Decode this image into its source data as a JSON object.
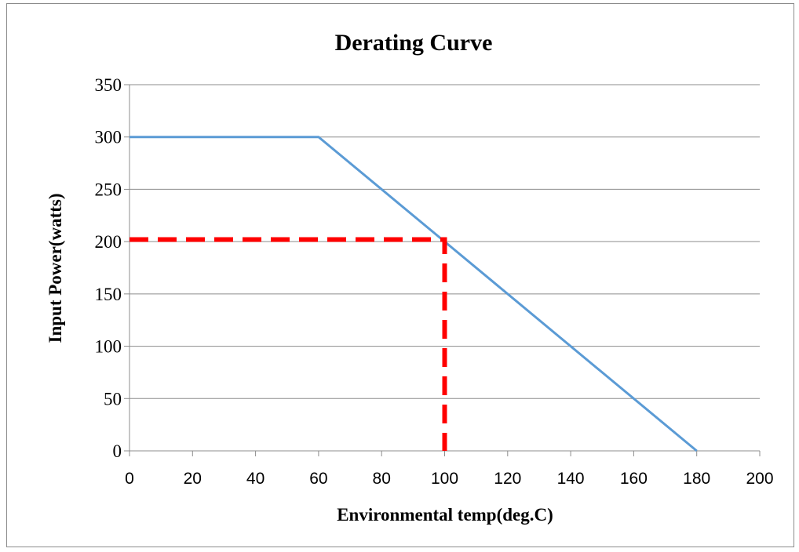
{
  "chart_data": {
    "type": "line",
    "title": "Derating Curve",
    "xlabel": "Environmental temp(deg.C)",
    "ylabel": "Input Power(watts)",
    "xlim": [
      0,
      200
    ],
    "ylim": [
      0,
      350
    ],
    "xticks": [
      "0",
      "20",
      "40",
      "60",
      "80",
      "100",
      "120",
      "140",
      "160",
      "180",
      "200"
    ],
    "yticks": [
      "0",
      "50",
      "100",
      "150",
      "200",
      "250",
      "300",
      "350"
    ],
    "grid": "horizontal",
    "legend": "none",
    "series": [
      {
        "color": "#5b9bd5",
        "style": "solid",
        "x": [
          0,
          60,
          100,
          180
        ],
        "y": [
          300,
          300,
          200,
          0
        ]
      },
      {
        "color": "#ff0000",
        "style": "dashed",
        "x": [
          0,
          100,
          100
        ],
        "y": [
          202,
          202,
          0
        ]
      }
    ]
  }
}
